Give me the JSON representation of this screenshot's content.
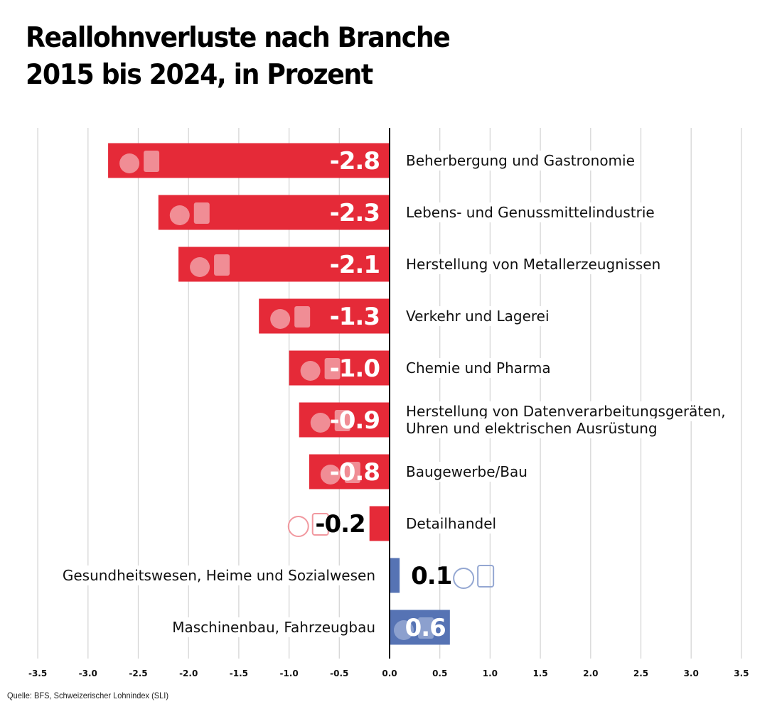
{
  "title_lines": [
    "Reallohnverluste nach Branche",
    "2015 bis 2024, in Prozent"
  ],
  "source": "Quelle: BFS, Schweizerischer Lohnindex (SLI)",
  "colors": {
    "negative": "#E52A38",
    "positive": "#5673B4",
    "grid": "#d6d6d6",
    "axis": "#000000",
    "icon_negative": "#F1939A",
    "icon_positive": "#8FA3D0"
  },
  "chart_data": {
    "type": "bar",
    "orientation": "horizontal",
    "title": "Reallohnverluste nach Branche 2015 bis 2024, in Prozent",
    "xlabel": "",
    "ylabel": "",
    "xlim": [
      -3.5,
      3.5
    ],
    "xticks": [
      -3.5,
      -3.0,
      -2.5,
      -2.0,
      -1.5,
      -1.0,
      -0.5,
      0.0,
      0.5,
      1.0,
      1.5,
      2.0,
      2.5,
      3.0,
      3.5
    ],
    "xtick_labels": [
      "-3.5",
      "-3.0",
      "-2.5",
      "-2.0",
      "-1.5",
      "-1.0",
      "-0.5",
      "0.0",
      "0.5",
      "1.0",
      "1.5",
      "2.0",
      "2.5",
      "3.0",
      "3.5"
    ],
    "grid": true,
    "categories": [
      [
        "Beherbergung und Gastronomie"
      ],
      [
        "Lebens- und Genussmittelindustrie"
      ],
      [
        "Herstellung von Metallerzeugnissen"
      ],
      [
        "Verkehr und Lagerei"
      ],
      [
        "Chemie und Pharma"
      ],
      [
        "Herstellung von Datenverarbeitungsgeräten,",
        "Uhren und elektrischen Ausrüstung"
      ],
      [
        "Baugewerbe/Bau"
      ],
      [
        "Detailhandel"
      ],
      [
        "Gesundheitswesen, Heime und Sozialwesen"
      ],
      [
        "Maschinenbau, Fahrzeugbau"
      ]
    ],
    "values": [
      -2.8,
      -2.3,
      -2.1,
      -1.3,
      -1.0,
      -0.9,
      -0.8,
      -0.2,
      0.1,
      0.6
    ],
    "value_labels": [
      "-2.8",
      "-2.3",
      "-2.1",
      "-1.3",
      "-1.0",
      "-0.9",
      "-0.8",
      "-0.2",
      "0.1",
      "0.6"
    ],
    "icons": [
      "cloche-and-chef-hat-icon",
      "food-conveyor-icon",
      "steel-beam-and-robot-arm-icon",
      "truck-and-warehouse-icon",
      "flask-and-pill-jar-icon",
      "stopwatch-icon",
      "wheelbarrow-icon",
      "shopping-cart-icon",
      "caring-hand-cross-icon",
      "gears-and-screw-icon"
    ]
  }
}
